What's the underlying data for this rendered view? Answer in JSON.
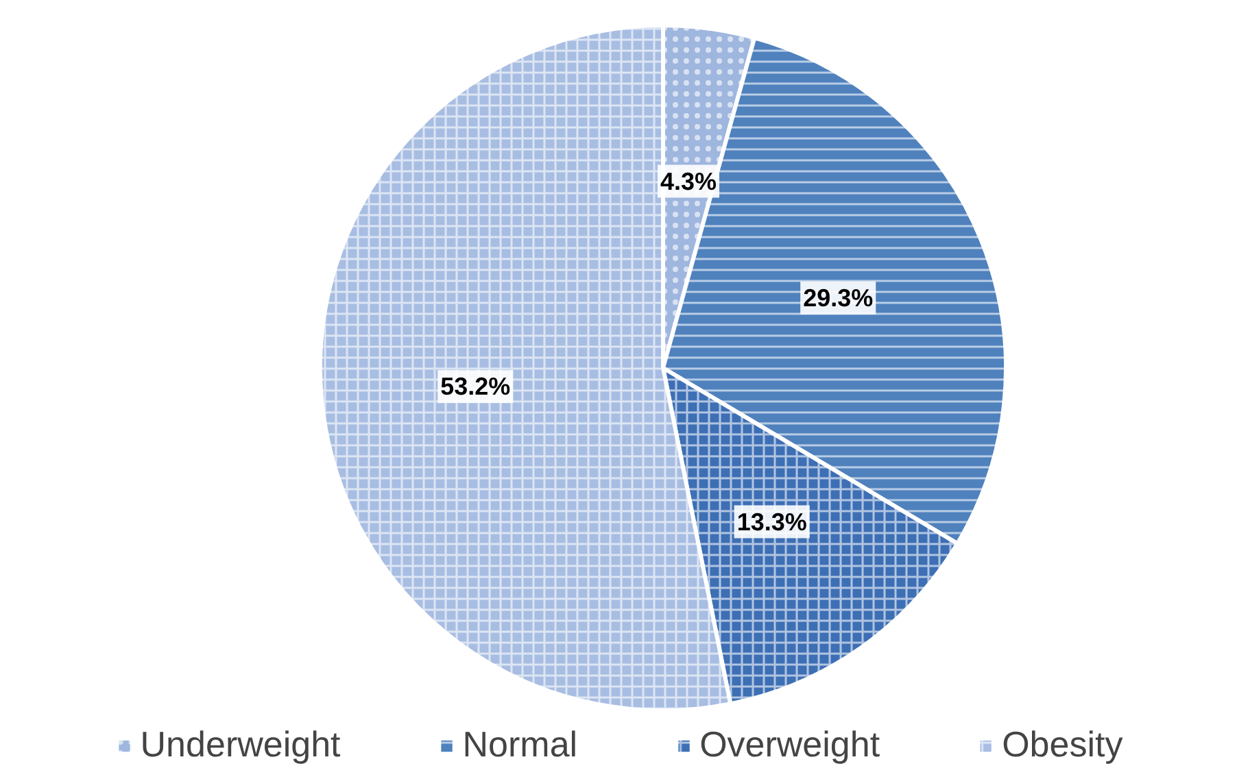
{
  "chart_data": {
    "type": "pie",
    "categories": [
      "Underweight",
      "Normal",
      "Overweight",
      "Obesity"
    ],
    "values": [
      4.3,
      29.3,
      13.3,
      53.2
    ],
    "colors": [
      "#9fb6de",
      "#4f81bd",
      "#3d6fb5",
      "#a8bde2"
    ],
    "value_labels": [
      "4.3%",
      "29.3%",
      "13.3%",
      "53.2%"
    ],
    "legend": "bottom"
  }
}
